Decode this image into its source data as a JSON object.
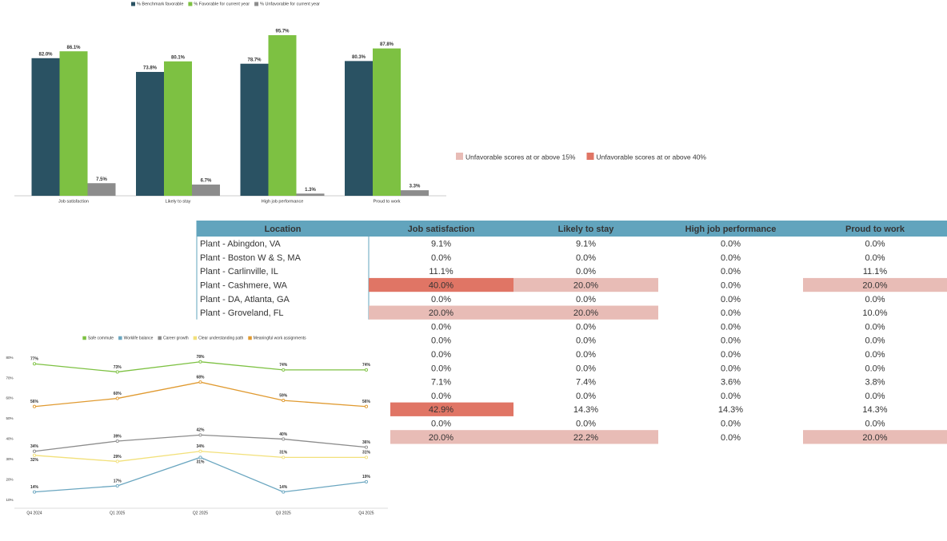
{
  "chart_data": [
    {
      "type": "bar",
      "categories": [
        "Job satisfaction",
        "Likely to stay",
        "High job performance",
        "Proud to work"
      ],
      "ylim": [
        0,
        100
      ],
      "series": [
        {
          "name": "% Benchmark favorable",
          "color": "#2a5263",
          "values": [
            82.0,
            73.8,
            78.7,
            80.3
          ],
          "value_labels": [
            "82.0%",
            "73.8%",
            "78.7%",
            "80.3%"
          ]
        },
        {
          "name": "% Favorable for current year",
          "color": "#7dc142",
          "values": [
            86.1,
            80.1,
            95.7,
            87.8
          ],
          "value_labels": [
            "86.1%",
            "80.1%",
            "95.7%",
            "87.8%"
          ]
        },
        {
          "name": "% Unfavorable for current year",
          "color": "#8c8c8c",
          "values": [
            7.5,
            6.7,
            1.3,
            3.3
          ],
          "value_labels": [
            "7.5%",
            "6.7%",
            "1.3%",
            "3.3%"
          ]
        }
      ]
    },
    {
      "type": "line",
      "categories": [
        "Q4 2024",
        "Q1 2025",
        "Q2 2025",
        "Q3 2025",
        "Q4 2025"
      ],
      "ylim": [
        6,
        83
      ],
      "yticks": [
        {
          "value": 10,
          "label": "10%"
        },
        {
          "value": 20,
          "label": "20%"
        },
        {
          "value": 30,
          "label": "30%"
        },
        {
          "value": 40,
          "label": "40%"
        },
        {
          "value": 50,
          "label": "50%"
        },
        {
          "value": 60,
          "label": "60%"
        },
        {
          "value": 70,
          "label": "70%"
        },
        {
          "value": 80,
          "label": "80%"
        }
      ],
      "series": [
        {
          "name": "Safe commute",
          "color": "#7dc142",
          "values": [
            77,
            73,
            78,
            74,
            74
          ],
          "value_labels": [
            "77%",
            "73%",
            "78%",
            "74%",
            "74%"
          ]
        },
        {
          "name": "Worklife balance",
          "color": "#6aa6c0",
          "values": [
            14,
            17,
            31,
            14,
            19
          ],
          "value_labels": [
            "14%",
            "17%",
            "31%",
            "14%",
            "19%"
          ]
        },
        {
          "name": "Career growth",
          "color": "#8c8c8c",
          "values": [
            34,
            39,
            42,
            40,
            36
          ],
          "value_labels": [
            "34%",
            "39%",
            "42%",
            "40%",
            "36%"
          ]
        },
        {
          "name": "Clear understanding path",
          "color": "#f2e07a",
          "values": [
            32,
            29,
            34,
            31,
            31
          ],
          "value_labels": [
            "32%",
            "29%",
            "34%",
            "31%",
            "31%"
          ]
        },
        {
          "name": "Meaningful work assignments",
          "color": "#e09a30",
          "values": [
            56,
            60,
            68,
            59,
            56
          ],
          "value_labels": [
            "56%",
            "60%",
            "68%",
            "59%",
            "56%"
          ]
        }
      ]
    }
  ],
  "table_legend": [
    {
      "label": "Unfavorable scores at or above 15%",
      "color": "#e8bcb6",
      "threshold": 15
    },
    {
      "label": "Unfavorable scores at or above 40%",
      "color": "#e07565",
      "threshold": 40
    }
  ],
  "table": {
    "header_color": "#62a4bd",
    "header": [
      "Location",
      "Job satisfaction",
      "Likely to stay",
      "High job performance",
      "Proud to work"
    ],
    "rows": [
      {
        "location": "Plant - Abingdon, VA",
        "cells": [
          "9.1%",
          "9.1%",
          "0.0%",
          "0.0%"
        ]
      },
      {
        "location": "Plant - Boston W & S, MA",
        "cells": [
          "0.0%",
          "0.0%",
          "0.0%",
          "0.0%"
        ]
      },
      {
        "location": "Plant - Carlinville, IL",
        "cells": [
          "11.1%",
          "0.0%",
          "0.0%",
          "11.1%"
        ]
      },
      {
        "location": "Plant - Cashmere, WA",
        "cells": [
          "40.0%",
          "20.0%",
          "0.0%",
          "20.0%"
        ]
      },
      {
        "location": "Plant - DA, Atlanta, GA",
        "cells": [
          "0.0%",
          "0.0%",
          "0.0%",
          "0.0%"
        ]
      },
      {
        "location": "Plant - Groveland, FL",
        "cells": [
          "20.0%",
          "20.0%",
          "0.0%",
          "10.0%"
        ]
      },
      {
        "cells": [
          "0.0%",
          "0.0%",
          "0.0%",
          "0.0%"
        ]
      },
      {
        "cells": [
          "0.0%",
          "0.0%",
          "0.0%",
          "0.0%"
        ]
      },
      {
        "cells": [
          "0.0%",
          "0.0%",
          "0.0%",
          "0.0%"
        ]
      },
      {
        "cells": [
          "0.0%",
          "0.0%",
          "0.0%",
          "0.0%"
        ]
      },
      {
        "cells": [
          "7.1%",
          "7.4%",
          "3.6%",
          "3.8%"
        ]
      },
      {
        "cells": [
          "0.0%",
          "0.0%",
          "0.0%",
          "0.0%"
        ]
      },
      {
        "cells": [
          "42.9%",
          "14.3%",
          "14.3%",
          "14.3%"
        ]
      },
      {
        "cells": [
          "0.0%",
          "0.0%",
          "0.0%",
          "0.0%"
        ]
      },
      {
        "cells": [
          "20.0%",
          "22.2%",
          "0.0%",
          "20.0%"
        ]
      }
    ]
  }
}
